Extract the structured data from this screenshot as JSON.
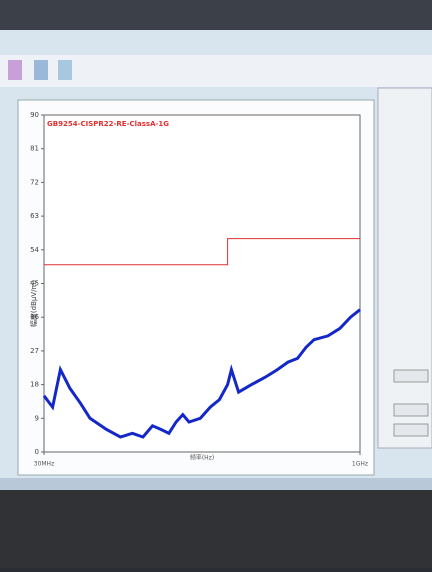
{
  "chart_data": {
    "type": "line",
    "title": "GB9254-CISPR22-RE-ClassA-1G",
    "x_label": "频率(Hz)",
    "y_label": "幅度(dBμV/m)",
    "xscale": "log",
    "xlim": [
      30,
      1000
    ],
    "xticks": [
      {
        "value": 30,
        "label": "30MHz"
      },
      {
        "value": 1000,
        "label": "1GHz"
      }
    ],
    "ylim": [
      0,
      90
    ],
    "yticks": [
      0,
      9,
      18,
      27,
      36,
      45,
      54,
      63,
      72,
      81,
      90
    ],
    "grid": false,
    "series": [
      {
        "name": "GB9254-CISPR22-RE-ClassA-1G",
        "color": "#e03030",
        "x": [
          30,
          230,
          230,
          1000
        ],
        "values": [
          50,
          50,
          57,
          57
        ]
      },
      {
        "color": "#1428c8",
        "x": [
          30,
          33,
          36,
          40,
          45,
          50,
          60,
          70,
          80,
          90,
          100,
          110,
          120,
          130,
          140,
          150,
          170,
          190,
          210,
          230,
          240,
          260,
          300,
          350,
          400,
          450,
          500,
          550,
          600,
          700,
          800,
          900,
          1000
        ],
        "values": [
          15,
          12,
          22,
          17,
          13,
          9,
          6,
          4,
          5,
          4,
          7,
          6,
          5,
          8,
          10,
          8,
          9,
          12,
          14,
          18,
          22,
          16,
          18,
          20,
          22,
          24,
          25,
          28,
          30,
          31,
          33,
          36,
          38
        ]
      }
    ]
  }
}
